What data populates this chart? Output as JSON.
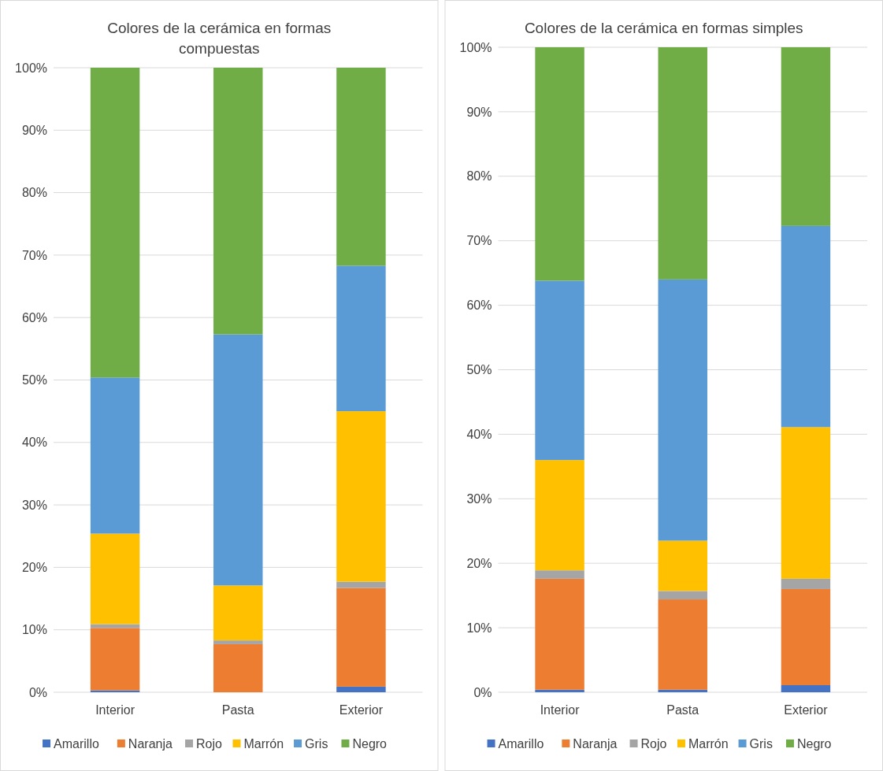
{
  "chart_data": [
    {
      "type": "bar",
      "stacked": true,
      "title": "Colores de la cerámica en formas compuestas",
      "categories": [
        "Interior",
        "Pasta",
        "Exterior"
      ],
      "ylim": [
        0,
        100
      ],
      "yticks": [
        {
          "value": 0,
          "label": "0%"
        },
        {
          "value": 10,
          "label": "10%"
        },
        {
          "value": 20,
          "label": "20%"
        },
        {
          "value": 30,
          "label": "30%"
        },
        {
          "value": 40,
          "label": "40%"
        },
        {
          "value": 50,
          "label": "50%"
        },
        {
          "value": 60,
          "label": "60%"
        },
        {
          "value": 70,
          "label": "70%"
        },
        {
          "value": 80,
          "label": "80%"
        },
        {
          "value": 90,
          "label": "90%"
        },
        {
          "value": 100,
          "label": "100%"
        }
      ],
      "grid": "y",
      "legend": "bottom",
      "series": [
        {
          "name": "Amarillo",
          "color": "#4472c4",
          "values": [
            0.3,
            0,
            0.9
          ]
        },
        {
          "name": "Naranja",
          "color": "#ed7d31",
          "values": [
            10.0,
            7.7,
            15.8
          ]
        },
        {
          "name": "Rojo",
          "color": "#a5a5a5",
          "values": [
            0.6,
            0.6,
            1.0
          ]
        },
        {
          "name": "Marrón",
          "color": "#ffc000",
          "values": [
            14.5,
            8.8,
            27.3
          ]
        },
        {
          "name": "Gris",
          "color": "#5b9bd5",
          "values": [
            25.0,
            40.2,
            23.3
          ]
        },
        {
          "name": "Negro",
          "color": "#70ad47",
          "values": [
            49.6,
            42.7,
            31.7
          ]
        }
      ]
    },
    {
      "type": "bar",
      "stacked": true,
      "title": "Colores de la cerámica en formas simples",
      "categories": [
        "Interior",
        "Pasta",
        "Exterior"
      ],
      "ylim": [
        0,
        100
      ],
      "yticks": [
        {
          "value": 0,
          "label": "0%"
        },
        {
          "value": 10,
          "label": "10%"
        },
        {
          "value": 20,
          "label": "20%"
        },
        {
          "value": 30,
          "label": "30%"
        },
        {
          "value": 40,
          "label": "40%"
        },
        {
          "value": 50,
          "label": "50%"
        },
        {
          "value": 60,
          "label": "60%"
        },
        {
          "value": 70,
          "label": "70%"
        },
        {
          "value": 80,
          "label": "80%"
        },
        {
          "value": 90,
          "label": "90%"
        },
        {
          "value": 100,
          "label": "100%"
        }
      ],
      "grid": "y",
      "legend": "bottom",
      "series": [
        {
          "name": "Amarillo",
          "color": "#4472c4",
          "values": [
            0.4,
            0.4,
            1.1
          ]
        },
        {
          "name": "Naranja",
          "color": "#ed7d31",
          "values": [
            17.2,
            14.0,
            14.9
          ]
        },
        {
          "name": "Rojo",
          "color": "#a5a5a5",
          "values": [
            1.3,
            1.3,
            1.6
          ]
        },
        {
          "name": "Marrón",
          "color": "#ffc000",
          "values": [
            17.1,
            7.8,
            23.5
          ]
        },
        {
          "name": "Gris",
          "color": "#5b9bd5",
          "values": [
            27.8,
            40.5,
            31.2
          ]
        },
        {
          "name": "Negro",
          "color": "#70ad47",
          "values": [
            36.2,
            36.0,
            27.7
          ]
        }
      ]
    }
  ]
}
